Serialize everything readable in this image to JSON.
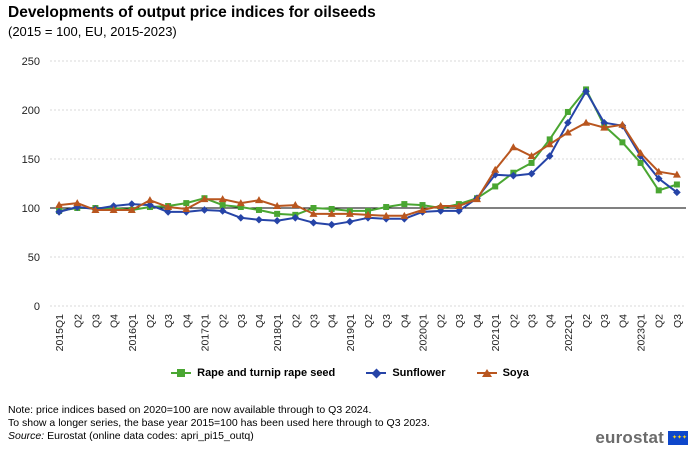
{
  "title": "Developments of output price indices for oilseeds",
  "subtitle": "(2015 = 100, EU, 2015-2023)",
  "chart_data": {
    "type": "line",
    "x": [
      "2015Q1",
      "Q2",
      "Q3",
      "Q4",
      "2016Q1",
      "Q2",
      "Q3",
      "Q4",
      "2017Q1",
      "Q2",
      "Q3",
      "Q4",
      "2018Q1",
      "Q2",
      "Q3",
      "Q4",
      "2019Q1",
      "Q2",
      "Q3",
      "Q4",
      "2020Q1",
      "Q2",
      "Q3",
      "Q4",
      "2021Q1",
      "Q2",
      "Q3",
      "Q4",
      "2022Q1",
      "Q2",
      "Q3",
      "Q4",
      "2023Q1",
      "Q2",
      "Q3"
    ],
    "y_ticks": [
      "0",
      "50",
      "100",
      "150",
      "200",
      "250"
    ],
    "ylim": [
      0,
      250
    ],
    "grid": true,
    "legend_position": "bottom",
    "series": [
      {
        "name": "Rape and turnip rape seed",
        "color": "#4aa632",
        "marker": "square",
        "values": [
          97,
          100,
          100,
          100,
          98,
          101,
          102,
          105,
          110,
          103,
          101,
          98,
          94,
          93,
          100,
          99,
          97,
          97,
          101,
          104,
          103,
          100,
          104,
          110,
          122,
          136,
          146,
          170,
          198,
          221,
          184,
          167,
          146,
          118,
          124
        ]
      },
      {
        "name": "Sunflower",
        "color": "#2644a7",
        "marker": "diamond",
        "values": [
          96,
          101,
          99,
          102,
          104,
          103,
          96,
          96,
          98,
          97,
          90,
          88,
          87,
          90,
          85,
          83,
          86,
          90,
          89,
          89,
          96,
          97,
          97,
          110,
          134,
          133,
          135,
          153,
          187,
          219,
          187,
          184,
          153,
          130,
          116
        ]
      },
      {
        "name": "Soya",
        "color": "#b9561f",
        "marker": "triangle",
        "values": [
          103,
          105,
          98,
          98,
          98,
          108,
          101,
          99,
          109,
          109,
          105,
          108,
          102,
          103,
          94,
          94,
          94,
          93,
          92,
          92,
          98,
          102,
          102,
          109,
          139,
          162,
          153,
          165,
          177,
          187,
          182,
          185,
          156,
          137,
          134
        ]
      }
    ]
  },
  "notes": {
    "line1": "Note: price indices based on 2020=100 are now available through to Q3 2024.",
    "line2": "To show a longer series, the base year 2015=100 has been used here through to Q3 2023.",
    "source_label": "Source:",
    "source_text": " Eurostat (online data codes: apri_pi15_outq)"
  },
  "logo": {
    "text": "eurostat",
    "icon": "eu-flag-icon"
  }
}
